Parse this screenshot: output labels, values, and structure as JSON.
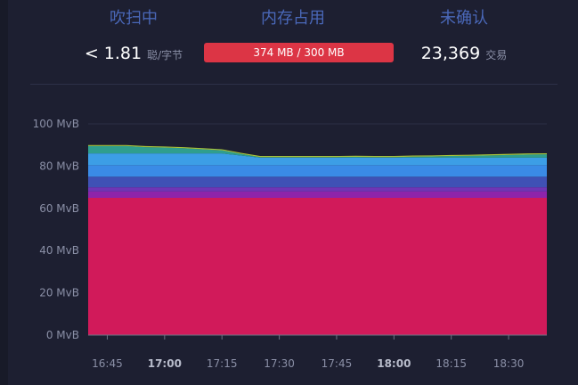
{
  "stats": {
    "purging": {
      "title": "吹扫中",
      "value": "< 1.81",
      "unit": "聪/字节"
    },
    "memory": {
      "title": "内存占用",
      "value": "374 MB / 300 MB",
      "usage_fraction": 1.0,
      "bar_color": "#dc3545"
    },
    "unconfirmed": {
      "title": "未确认",
      "value": "23,369",
      "unit": "交易"
    }
  },
  "chart_data": {
    "type": "area",
    "stacked": true,
    "x": [
      "16:40",
      "16:45",
      "16:50",
      "16:55",
      "17:00",
      "17:05",
      "17:10",
      "17:15",
      "17:20",
      "17:25",
      "17:30",
      "17:35",
      "17:40",
      "17:45",
      "17:50",
      "17:55",
      "18:00",
      "18:05",
      "18:10",
      "18:15",
      "18:20",
      "18:25",
      "18:30",
      "18:35",
      "18:40"
    ],
    "xticks": [
      {
        "label": "16:45",
        "bold": false
      },
      {
        "label": "17:00",
        "bold": true
      },
      {
        "label": "17:15",
        "bold": false
      },
      {
        "label": "17:30",
        "bold": false
      },
      {
        "label": "17:45",
        "bold": false
      },
      {
        "label": "18:00",
        "bold": true
      },
      {
        "label": "18:15",
        "bold": false
      },
      {
        "label": "18:30",
        "bold": false
      }
    ],
    "yticks": [
      "0 MvB",
      "20 MvB",
      "40 MvB",
      "60 MvB",
      "80 MvB",
      "100 MvB"
    ],
    "ylim": [
      0,
      100
    ],
    "grid": true,
    "series": [
      {
        "color": "#d11a5a",
        "values": [
          65,
          65,
          65,
          65,
          65,
          65,
          65,
          65,
          65,
          65,
          65,
          65,
          65,
          65,
          65,
          65,
          65,
          65,
          65,
          65,
          65,
          65,
          65,
          65,
          65
        ]
      },
      {
        "color": "#8e24aa",
        "values": [
          3,
          3,
          3,
          3,
          3,
          3,
          3,
          3,
          3,
          3,
          3,
          3,
          3,
          3,
          3,
          3,
          3,
          3,
          3,
          3,
          3,
          3,
          3,
          3,
          3
        ]
      },
      {
        "color": "#6f35b5",
        "values": [
          2,
          2,
          2,
          2,
          2,
          2,
          2,
          2,
          2,
          2,
          2,
          2,
          2,
          2,
          2,
          2,
          2,
          2,
          2,
          2,
          2,
          2,
          2,
          2,
          2
        ]
      },
      {
        "color": "#3f51b5",
        "values": [
          5,
          5,
          5,
          5,
          5,
          5,
          5,
          5,
          5,
          5,
          5,
          5,
          5,
          5,
          5,
          5,
          5,
          5,
          5,
          5,
          5,
          5,
          5,
          5,
          5
        ]
      },
      {
        "color": "#3a8be6",
        "values": [
          5.5,
          5.5,
          5.5,
          5.5,
          5.5,
          5.5,
          5.5,
          5.5,
          5.5,
          5.5,
          5.5,
          5.5,
          5.5,
          5.5,
          5.5,
          5.5,
          5.5,
          5.5,
          5.5,
          5.5,
          5.5,
          5.5,
          5.5,
          5.5,
          5.5
        ]
      },
      {
        "color": "#3c9ee6",
        "values": [
          5.5,
          5.5,
          5.5,
          5.5,
          5.5,
          5.5,
          5.5,
          5.5,
          4.5,
          3.5,
          3.5,
          3.5,
          3.5,
          3.5,
          3.5,
          3.5,
          3.5,
          3.5,
          3.5,
          3.5,
          3.5,
          3.5,
          3.5,
          3.5,
          3.5
        ]
      },
      {
        "color": "#2f9e8e",
        "values": [
          3.5,
          3.5,
          3.5,
          3,
          2.8,
          2.5,
          2,
          1.5,
          0.8,
          0.3,
          0.3,
          0.3,
          0.3,
          0.3,
          0.4,
          0.3,
          0.3,
          0.5,
          0.6,
          0.8,
          0.9,
          1.1,
          1.3,
          1.5,
          1.6
        ]
      },
      {
        "color": "#a8c23a",
        "values": [
          0.5,
          0.5,
          0.5,
          0.5,
          0.5,
          0.5,
          0.5,
          0.5,
          0.5,
          0.5,
          0.5,
          0.5,
          0.5,
          0.5,
          0.5,
          0.5,
          0.5,
          0.5,
          0.5,
          0.5,
          0.5,
          0.5,
          0.5,
          0.5,
          0.5
        ]
      }
    ]
  }
}
